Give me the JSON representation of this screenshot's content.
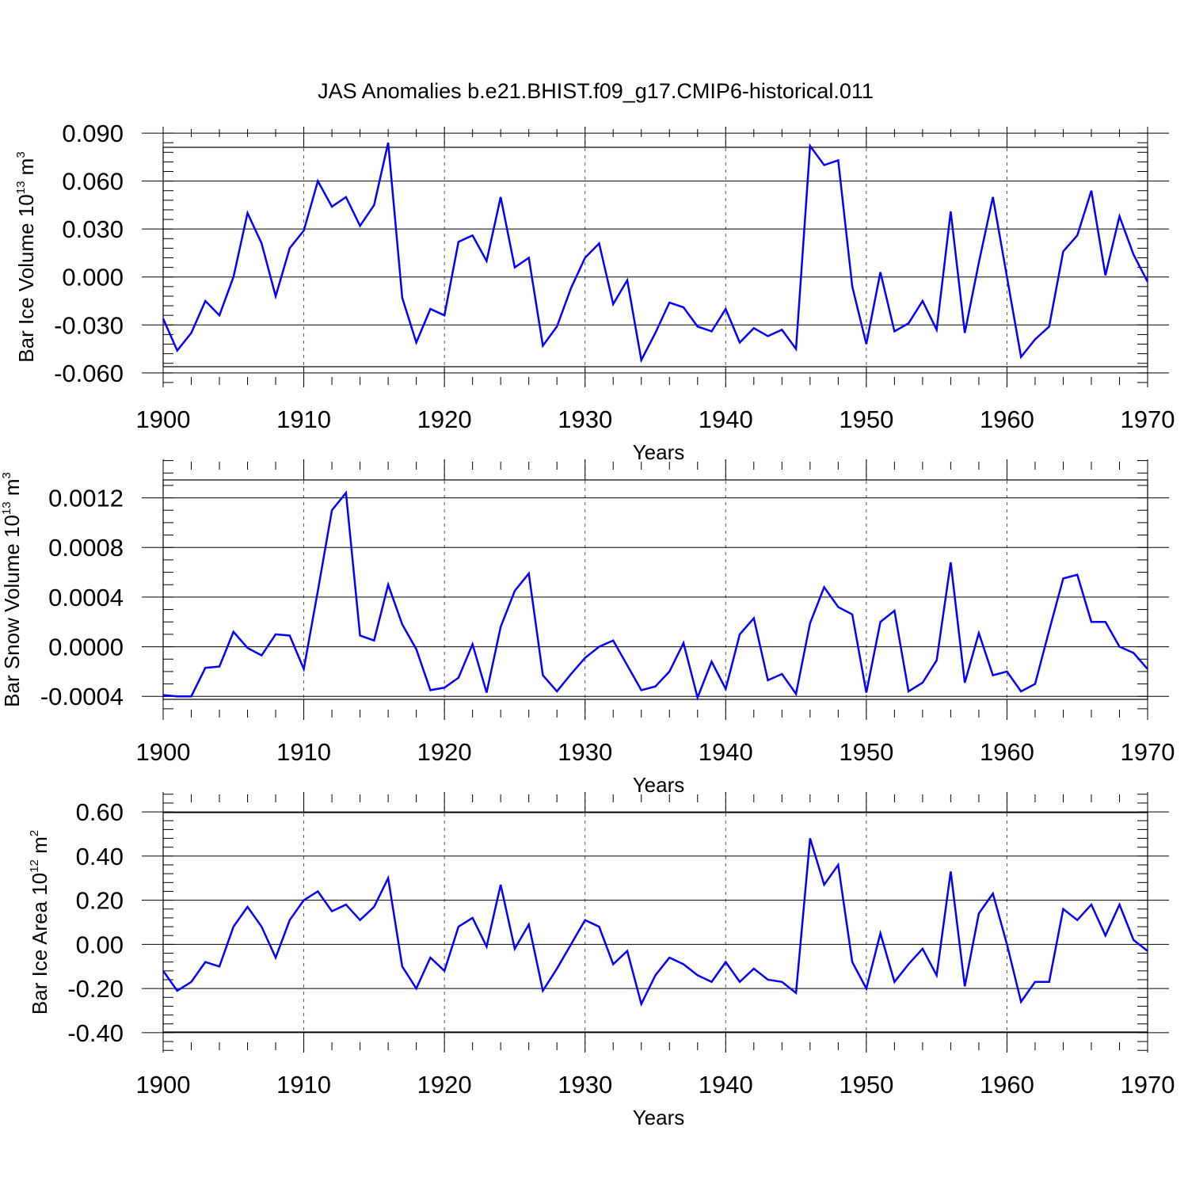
{
  "title": "JAS Anomalies b.e21.BHIST.f09_g17.CMIP6-historical.011",
  "line_color": "#0000ff",
  "chart_data": [
    {
      "type": "line",
      "title": "JAS Anomalies b.e21.BHIST.f09_g17.CMIP6-historical.011",
      "xlabel": "Years",
      "ylabel": {
        "pre": "Bar Ice Volume 10",
        "sup1": "13",
        "mid": " m",
        "sup2": "3"
      },
      "xlim": [
        1900,
        1970
      ],
      "ylim": [
        -0.069,
        0.094
      ],
      "xticks": [
        1900,
        1910,
        1920,
        1930,
        1940,
        1950,
        1960,
        1970
      ],
      "xtick_labels": [
        "1900",
        "1910",
        "1920",
        "1930",
        "1940",
        "1950",
        "1960",
        "1970"
      ],
      "yticks": [
        -0.06,
        -0.03,
        0.0,
        0.03,
        0.06,
        0.09
      ],
      "ytick_labels": [
        "-0.060",
        "-0.030",
        "0.000",
        "0.030",
        "0.060",
        "0.090"
      ],
      "yminor_step": 0.006,
      "grid_x": true,
      "x": [
        1900,
        1901,
        1902,
        1903,
        1904,
        1905,
        1906,
        1907,
        1908,
        1909,
        1910,
        1911,
        1912,
        1913,
        1914,
        1915,
        1916,
        1917,
        1918,
        1919,
        1920,
        1921,
        1922,
        1923,
        1924,
        1925,
        1926,
        1927,
        1928,
        1929,
        1930,
        1931,
        1932,
        1933,
        1934,
        1935,
        1936,
        1937,
        1938,
        1939,
        1940,
        1941,
        1942,
        1943,
        1944,
        1945,
        1946,
        1947,
        1948,
        1949,
        1950,
        1951,
        1952,
        1953,
        1954,
        1955,
        1956,
        1957,
        1958,
        1959,
        1960,
        1961,
        1962,
        1963,
        1964,
        1965,
        1966,
        1967,
        1968,
        1969,
        1970
      ],
      "values": [
        -0.026,
        -0.046,
        -0.035,
        -0.015,
        -0.024,
        0.0,
        0.04,
        0.021,
        -0.012,
        0.018,
        0.029,
        0.06,
        0.044,
        0.05,
        0.032,
        0.045,
        0.084,
        -0.013,
        -0.041,
        -0.02,
        -0.024,
        0.022,
        0.026,
        0.01,
        0.05,
        0.006,
        0.012,
        -0.043,
        -0.031,
        -0.007,
        0.012,
        0.021,
        -0.017,
        -0.002,
        -0.052,
        -0.035,
        -0.016,
        -0.019,
        -0.031,
        -0.034,
        -0.02,
        -0.041,
        -0.032,
        -0.037,
        -0.033,
        -0.045,
        0.082,
        0.07,
        0.073,
        -0.006,
        -0.042,
        0.003,
        -0.034,
        -0.029,
        -0.015,
        -0.033,
        0.041,
        -0.035,
        0.009,
        0.05,
        0.0,
        -0.05,
        -0.039,
        -0.031,
        0.016,
        0.026,
        0.054,
        0.001,
        0.038,
        0.014,
        -0.003
      ]
    },
    {
      "type": "line",
      "title": "",
      "xlabel": "Years",
      "ylabel": {
        "pre": "Bar Snow Volume 10",
        "sup1": "13",
        "mid": " m",
        "sup2": "3"
      },
      "xlim": [
        1900,
        1970
      ],
      "ylim": [
        -0.00059,
        0.00151
      ],
      "xticks": [
        1900,
        1910,
        1920,
        1930,
        1940,
        1950,
        1960,
        1970
      ],
      "xtick_labels": [
        "1900",
        "1910",
        "1920",
        "1930",
        "1940",
        "1950",
        "1960",
        "1970"
      ],
      "yticks": [
        -0.0004,
        0.0,
        0.0004,
        0.0008,
        0.0012
      ],
      "ytick_labels": [
        "-0.0004",
        "0.0000",
        "0.0004",
        "0.0008",
        "0.0012"
      ],
      "yminor_step": 0.0001,
      "grid_x": true,
      "x": [
        1900,
        1901,
        1902,
        1903,
        1904,
        1905,
        1906,
        1907,
        1908,
        1909,
        1910,
        1911,
        1912,
        1913,
        1914,
        1915,
        1916,
        1917,
        1918,
        1919,
        1920,
        1921,
        1922,
        1923,
        1924,
        1925,
        1926,
        1927,
        1928,
        1929,
        1930,
        1931,
        1932,
        1933,
        1934,
        1935,
        1936,
        1937,
        1938,
        1939,
        1940,
        1941,
        1942,
        1943,
        1944,
        1945,
        1946,
        1947,
        1948,
        1949,
        1950,
        1951,
        1952,
        1953,
        1954,
        1955,
        1956,
        1957,
        1958,
        1959,
        1960,
        1961,
        1962,
        1963,
        1964,
        1965,
        1966,
        1967,
        1968,
        1969,
        1970
      ],
      "values": [
        -0.00039,
        -0.0004,
        -0.0004,
        -0.00017,
        -0.00016,
        0.00012,
        -1e-05,
        -7e-05,
        0.0001,
        9e-05,
        -0.00018,
        0.00045,
        0.0011,
        0.00124,
        9e-05,
        5e-05,
        0.0005,
        0.00018,
        -2e-05,
        -0.00035,
        -0.00033,
        -0.00025,
        2e-05,
        -0.00037,
        0.00016,
        0.00045,
        0.00059,
        -0.00023,
        -0.00036,
        -0.00022,
        -9e-05,
        0.0,
        5e-05,
        -0.00015,
        -0.00035,
        -0.00032,
        -0.0002,
        3e-05,
        -0.00041,
        -0.00012,
        -0.00034,
        0.0001,
        0.00023,
        -0.00027,
        -0.00022,
        -0.00038,
        0.00019,
        0.00048,
        0.00032,
        0.00026,
        -0.00037,
        0.0002,
        0.00029,
        -0.00036,
        -0.00029,
        -0.00011,
        0.00068,
        -0.00029,
        0.00011,
        -0.00023,
        -0.0002,
        -0.00036,
        -0.0003,
        0.00013,
        0.00055,
        0.00058,
        0.0002,
        0.0002,
        0.0,
        -5e-05,
        -0.00018
      ]
    },
    {
      "type": "line",
      "title": "",
      "xlabel": "Years",
      "ylabel": {
        "pre": "Bar Ice Area 10",
        "sup1": "12",
        "mid": " m",
        "sup2": "2"
      },
      "xlim": [
        1900,
        1970
      ],
      "ylim": [
        -0.49,
        0.69
      ],
      "xticks": [
        1900,
        1910,
        1920,
        1930,
        1940,
        1950,
        1960,
        1970
      ],
      "xtick_labels": [
        "1900",
        "1910",
        "1920",
        "1930",
        "1940",
        "1950",
        "1960",
        "1970"
      ],
      "yticks": [
        -0.4,
        -0.2,
        0.0,
        0.2,
        0.4,
        0.6
      ],
      "ytick_labels": [
        "-0.40",
        "-0.20",
        "0.00",
        "0.20",
        "0.40",
        "0.60"
      ],
      "yminor_step": 0.04,
      "grid_x": true,
      "x": [
        1900,
        1901,
        1902,
        1903,
        1904,
        1905,
        1906,
        1907,
        1908,
        1909,
        1910,
        1911,
        1912,
        1913,
        1914,
        1915,
        1916,
        1917,
        1918,
        1919,
        1920,
        1921,
        1922,
        1923,
        1924,
        1925,
        1926,
        1927,
        1928,
        1929,
        1930,
        1931,
        1932,
        1933,
        1934,
        1935,
        1936,
        1937,
        1938,
        1939,
        1940,
        1941,
        1942,
        1943,
        1944,
        1945,
        1946,
        1947,
        1948,
        1949,
        1950,
        1951,
        1952,
        1953,
        1954,
        1955,
        1956,
        1957,
        1958,
        1959,
        1960,
        1961,
        1962,
        1963,
        1964,
        1965,
        1966,
        1967,
        1968,
        1969,
        1970
      ],
      "values": [
        -0.12,
        -0.21,
        -0.17,
        -0.08,
        -0.1,
        0.08,
        0.17,
        0.08,
        -0.06,
        0.11,
        0.2,
        0.24,
        0.15,
        0.18,
        0.11,
        0.17,
        0.3,
        -0.1,
        -0.2,
        -0.06,
        -0.12,
        0.08,
        0.12,
        -0.01,
        0.27,
        -0.02,
        0.09,
        -0.21,
        -0.11,
        0.0,
        0.11,
        0.08,
        -0.09,
        -0.03,
        -0.27,
        -0.14,
        -0.06,
        -0.09,
        -0.14,
        -0.17,
        -0.08,
        -0.17,
        -0.11,
        -0.16,
        -0.17,
        -0.22,
        0.48,
        0.27,
        0.36,
        -0.08,
        -0.2,
        0.05,
        -0.17,
        -0.09,
        -0.02,
        -0.14,
        0.33,
        -0.19,
        0.14,
        0.23,
        0.0,
        -0.26,
        -0.17,
        -0.17,
        0.16,
        0.11,
        0.18,
        0.04,
        0.18,
        0.02,
        -0.03
      ]
    }
  ]
}
